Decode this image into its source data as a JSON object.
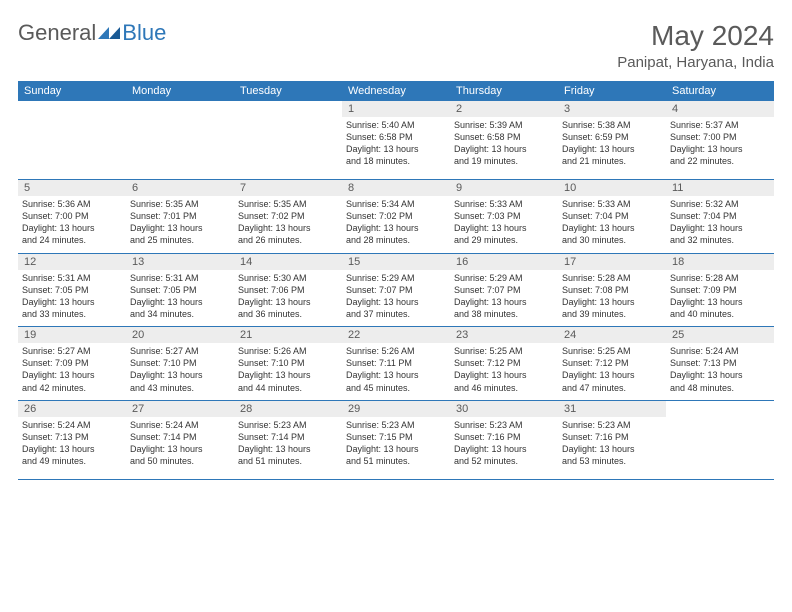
{
  "brand": {
    "text1": "General",
    "text2": "Blue"
  },
  "title": "May 2024",
  "location": "Panipat, Haryana, India",
  "colors": {
    "accent": "#2e77b8",
    "header_bg": "#2e77b8",
    "header_text": "#ffffff",
    "daynum_bg": "#ededed",
    "daynum_text": "#5a5a5a",
    "body_text": "#333333",
    "title_text": "#5a5a5a"
  },
  "dayNames": [
    "Sunday",
    "Monday",
    "Tuesday",
    "Wednesday",
    "Thursday",
    "Friday",
    "Saturday"
  ],
  "weeks": [
    [
      null,
      null,
      null,
      {
        "n": "1",
        "sr": "Sunrise: 5:40 AM",
        "ss": "Sunset: 6:58 PM",
        "d1": "Daylight: 13 hours",
        "d2": "and 18 minutes."
      },
      {
        "n": "2",
        "sr": "Sunrise: 5:39 AM",
        "ss": "Sunset: 6:58 PM",
        "d1": "Daylight: 13 hours",
        "d2": "and 19 minutes."
      },
      {
        "n": "3",
        "sr": "Sunrise: 5:38 AM",
        "ss": "Sunset: 6:59 PM",
        "d1": "Daylight: 13 hours",
        "d2": "and 21 minutes."
      },
      {
        "n": "4",
        "sr": "Sunrise: 5:37 AM",
        "ss": "Sunset: 7:00 PM",
        "d1": "Daylight: 13 hours",
        "d2": "and 22 minutes."
      }
    ],
    [
      {
        "n": "5",
        "sr": "Sunrise: 5:36 AM",
        "ss": "Sunset: 7:00 PM",
        "d1": "Daylight: 13 hours",
        "d2": "and 24 minutes."
      },
      {
        "n": "6",
        "sr": "Sunrise: 5:35 AM",
        "ss": "Sunset: 7:01 PM",
        "d1": "Daylight: 13 hours",
        "d2": "and 25 minutes."
      },
      {
        "n": "7",
        "sr": "Sunrise: 5:35 AM",
        "ss": "Sunset: 7:02 PM",
        "d1": "Daylight: 13 hours",
        "d2": "and 26 minutes."
      },
      {
        "n": "8",
        "sr": "Sunrise: 5:34 AM",
        "ss": "Sunset: 7:02 PM",
        "d1": "Daylight: 13 hours",
        "d2": "and 28 minutes."
      },
      {
        "n": "9",
        "sr": "Sunrise: 5:33 AM",
        "ss": "Sunset: 7:03 PM",
        "d1": "Daylight: 13 hours",
        "d2": "and 29 minutes."
      },
      {
        "n": "10",
        "sr": "Sunrise: 5:33 AM",
        "ss": "Sunset: 7:04 PM",
        "d1": "Daylight: 13 hours",
        "d2": "and 30 minutes."
      },
      {
        "n": "11",
        "sr": "Sunrise: 5:32 AM",
        "ss": "Sunset: 7:04 PM",
        "d1": "Daylight: 13 hours",
        "d2": "and 32 minutes."
      }
    ],
    [
      {
        "n": "12",
        "sr": "Sunrise: 5:31 AM",
        "ss": "Sunset: 7:05 PM",
        "d1": "Daylight: 13 hours",
        "d2": "and 33 minutes."
      },
      {
        "n": "13",
        "sr": "Sunrise: 5:31 AM",
        "ss": "Sunset: 7:05 PM",
        "d1": "Daylight: 13 hours",
        "d2": "and 34 minutes."
      },
      {
        "n": "14",
        "sr": "Sunrise: 5:30 AM",
        "ss": "Sunset: 7:06 PM",
        "d1": "Daylight: 13 hours",
        "d2": "and 36 minutes."
      },
      {
        "n": "15",
        "sr": "Sunrise: 5:29 AM",
        "ss": "Sunset: 7:07 PM",
        "d1": "Daylight: 13 hours",
        "d2": "and 37 minutes."
      },
      {
        "n": "16",
        "sr": "Sunrise: 5:29 AM",
        "ss": "Sunset: 7:07 PM",
        "d1": "Daylight: 13 hours",
        "d2": "and 38 minutes."
      },
      {
        "n": "17",
        "sr": "Sunrise: 5:28 AM",
        "ss": "Sunset: 7:08 PM",
        "d1": "Daylight: 13 hours",
        "d2": "and 39 minutes."
      },
      {
        "n": "18",
        "sr": "Sunrise: 5:28 AM",
        "ss": "Sunset: 7:09 PM",
        "d1": "Daylight: 13 hours",
        "d2": "and 40 minutes."
      }
    ],
    [
      {
        "n": "19",
        "sr": "Sunrise: 5:27 AM",
        "ss": "Sunset: 7:09 PM",
        "d1": "Daylight: 13 hours",
        "d2": "and 42 minutes."
      },
      {
        "n": "20",
        "sr": "Sunrise: 5:27 AM",
        "ss": "Sunset: 7:10 PM",
        "d1": "Daylight: 13 hours",
        "d2": "and 43 minutes."
      },
      {
        "n": "21",
        "sr": "Sunrise: 5:26 AM",
        "ss": "Sunset: 7:10 PM",
        "d1": "Daylight: 13 hours",
        "d2": "and 44 minutes."
      },
      {
        "n": "22",
        "sr": "Sunrise: 5:26 AM",
        "ss": "Sunset: 7:11 PM",
        "d1": "Daylight: 13 hours",
        "d2": "and 45 minutes."
      },
      {
        "n": "23",
        "sr": "Sunrise: 5:25 AM",
        "ss": "Sunset: 7:12 PM",
        "d1": "Daylight: 13 hours",
        "d2": "and 46 minutes."
      },
      {
        "n": "24",
        "sr": "Sunrise: 5:25 AM",
        "ss": "Sunset: 7:12 PM",
        "d1": "Daylight: 13 hours",
        "d2": "and 47 minutes."
      },
      {
        "n": "25",
        "sr": "Sunrise: 5:24 AM",
        "ss": "Sunset: 7:13 PM",
        "d1": "Daylight: 13 hours",
        "d2": "and 48 minutes."
      }
    ],
    [
      {
        "n": "26",
        "sr": "Sunrise: 5:24 AM",
        "ss": "Sunset: 7:13 PM",
        "d1": "Daylight: 13 hours",
        "d2": "and 49 minutes."
      },
      {
        "n": "27",
        "sr": "Sunrise: 5:24 AM",
        "ss": "Sunset: 7:14 PM",
        "d1": "Daylight: 13 hours",
        "d2": "and 50 minutes."
      },
      {
        "n": "28",
        "sr": "Sunrise: 5:23 AM",
        "ss": "Sunset: 7:14 PM",
        "d1": "Daylight: 13 hours",
        "d2": "and 51 minutes."
      },
      {
        "n": "29",
        "sr": "Sunrise: 5:23 AM",
        "ss": "Sunset: 7:15 PM",
        "d1": "Daylight: 13 hours",
        "d2": "and 51 minutes."
      },
      {
        "n": "30",
        "sr": "Sunrise: 5:23 AM",
        "ss": "Sunset: 7:16 PM",
        "d1": "Daylight: 13 hours",
        "d2": "and 52 minutes."
      },
      {
        "n": "31",
        "sr": "Sunrise: 5:23 AM",
        "ss": "Sunset: 7:16 PM",
        "d1": "Daylight: 13 hours",
        "d2": "and 53 minutes."
      },
      null
    ]
  ]
}
